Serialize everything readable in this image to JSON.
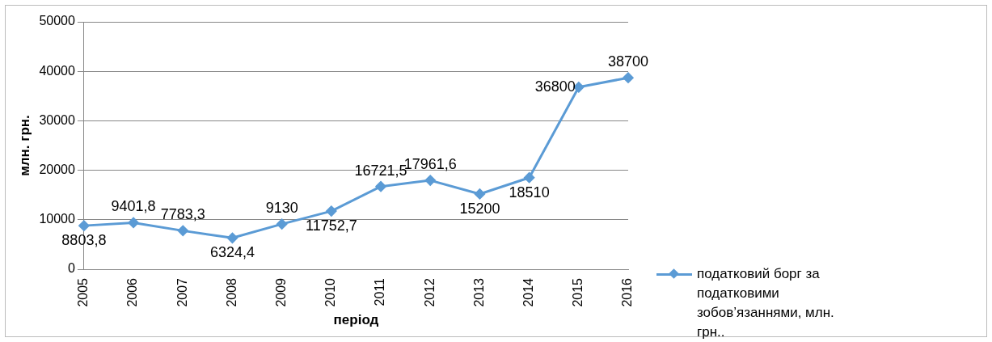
{
  "chart_data": {
    "type": "line",
    "xlabel": "період",
    "ylabel": "млн. грн.",
    "categories": [
      "2005",
      "2006",
      "2007",
      "2008",
      "2009",
      "2010",
      "2011",
      "2012",
      "2013",
      "2014",
      "2015",
      "2016"
    ],
    "series": [
      {
        "name": "податковий борг за податковими зобов’язаннями, млн. грн..",
        "color": "#5b9bd5",
        "values": [
          8803.8,
          9401.8,
          7783.3,
          6324.4,
          9130,
          11752.7,
          16721.5,
          17961.6,
          15200,
          18510,
          36800,
          38700
        ],
        "value_labels": [
          "8803,8",
          "9401,8",
          "7783,3",
          "6324,4",
          "9130",
          "11752,7",
          "16721,5",
          "17961,6",
          "15200",
          "18510",
          "36800",
          "38700"
        ]
      }
    ],
    "ylim": [
      0,
      50000
    ],
    "yticks": [
      0,
      10000,
      20000,
      30000,
      40000,
      50000
    ],
    "grid": "y",
    "legend": "right",
    "marker": "diamond",
    "line_style": "solid"
  }
}
